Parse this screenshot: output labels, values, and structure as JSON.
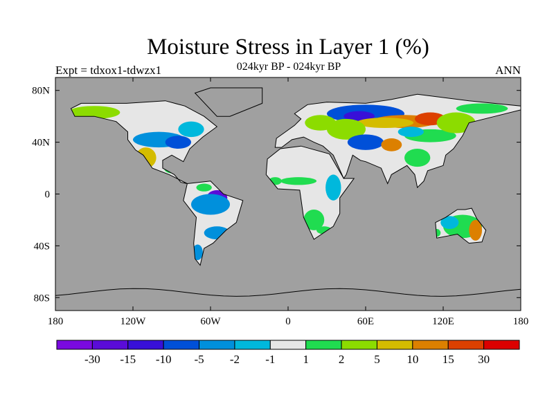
{
  "title": "Moisture Stress in Layer 1 (%)",
  "experiment_label": "Expt = tdxox1-tdwzx1",
  "subtitle": "024kyr BP - 024kyr BP",
  "season": "ANN",
  "lat_ticks": [
    {
      "value": 80,
      "label": "80N"
    },
    {
      "value": 40,
      "label": "40N"
    },
    {
      "value": 0,
      "label": "0"
    },
    {
      "value": -40,
      "label": "40S"
    },
    {
      "value": -80,
      "label": "80S"
    }
  ],
  "lon_ticks": [
    {
      "value": -180,
      "label": "180"
    },
    {
      "value": -120,
      "label": "120W"
    },
    {
      "value": -60,
      "label": "60W"
    },
    {
      "value": 0,
      "label": "0"
    },
    {
      "value": 60,
      "label": "60E"
    },
    {
      "value": 120,
      "label": "120E"
    },
    {
      "value": 180,
      "label": "180"
    }
  ],
  "colors": {
    "ocean": "#a0a0a0",
    "land_missing": "#e6e6e6"
  },
  "colorbar": {
    "levels": [
      "-30",
      "-15",
      "-10",
      "-5",
      "-2",
      "-1",
      "1",
      "2",
      "5",
      "10",
      "15",
      "30"
    ],
    "colors": [
      "#7a0ae0",
      "#5a0cd8",
      "#3810d8",
      "#0050d8",
      "#0090dc",
      "#00b8dc",
      "#e6e6e6",
      "#20dc50",
      "#8cdc00",
      "#d4bc00",
      "#dc8000",
      "#dc4000",
      "#dc0000"
    ]
  }
}
